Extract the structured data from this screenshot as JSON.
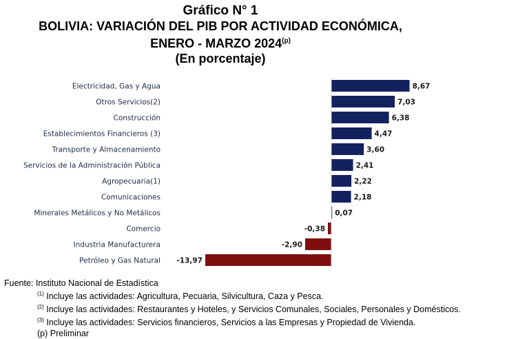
{
  "title": {
    "line1": "Gráfico N° 1",
    "line2": "BOLIVIA: VARIACIÓN DEL PIB POR ACTIVIDAD ECONÓMICA,",
    "line3": "ENERO - MARZO 2024",
    "line3_sup": "(p)",
    "line4": "(En porcentaje)"
  },
  "colors": {
    "positive": "#14215f",
    "negative": "#7f0f0f"
  },
  "chart_data": {
    "type": "bar",
    "orientation": "horizontal",
    "categories": [
      "Electricidad, Gas y Agua",
      "Otros Servicios(2)",
      "Construcción",
      "Establecimientos Financieros (3)",
      "Transporte y Almacenamiento",
      "Servicios de la Administración Pública",
      "Agropecuaria(1)",
      "Comunicaciones",
      "Minerales Metálicos y No Metálicos",
      "Comercio",
      "Industria Manufacturera",
      "Petróleo y Gas Natural"
    ],
    "values": [
      8.67,
      7.03,
      6.38,
      4.47,
      3.6,
      2.41,
      2.22,
      2.18,
      0.07,
      -0.38,
      -2.9,
      -13.97
    ],
    "labels": [
      "8,67",
      "7,03",
      "6,38",
      "4,47",
      "3,60",
      "2,41",
      "2,22",
      "2,18",
      "0,07",
      "-0,38",
      "-2,90",
      "-13,97"
    ],
    "xlim": [
      -13.97,
      8.67
    ]
  },
  "footer": {
    "source": "Fuente: Instituto Nacional de Estadística",
    "notes": [
      {
        "mark": "(1)",
        "text": " Incluye las actividades: Agricultura, Pecuaria, Silvicultura, Caza y Pesca."
      },
      {
        "mark": "(2)",
        "text": " Incluye las actividades: Restaurantes y Hoteles, y Servicios Comunales, Sociales, Personales y Domésticos."
      },
      {
        "mark": "(3)",
        "text": " Incluye las actividades: Servicios financieros, Servicios a las Empresas y Propiedad de Vivienda."
      }
    ],
    "preliminary": "(p) Preliminar"
  }
}
